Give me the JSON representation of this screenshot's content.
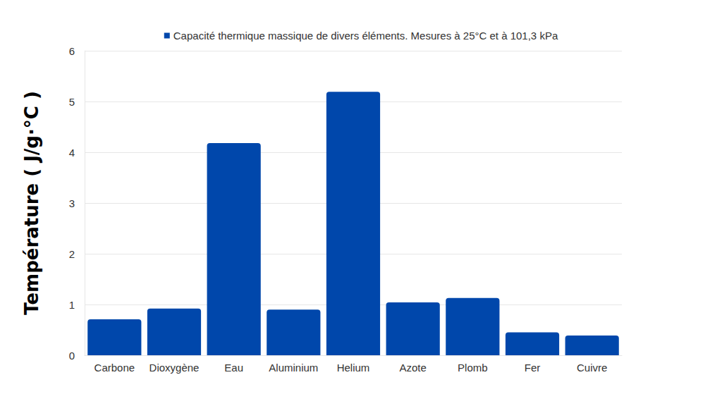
{
  "chart_data": {
    "type": "bar",
    "y_label": "Température ( J/g·°C )",
    "categories": [
      "Carbone",
      "Dioxygène",
      "Eau",
      "Aluminium",
      "Helium",
      "Azote",
      "Plomb",
      "Fer",
      "Cuivre"
    ],
    "series": [
      {
        "name": "Capacité thermique massique de divers éléments. Mesures à 25°C et à 101,3 kPa",
        "color": "#0047ab",
        "values": [
          0.71,
          0.92,
          4.18,
          0.9,
          5.19,
          1.04,
          1.13,
          0.45,
          0.39
        ]
      }
    ],
    "ylim": [
      0,
      6
    ],
    "yticks": [
      0,
      1,
      2,
      3,
      4,
      5,
      6
    ],
    "grid": true,
    "legend": "top"
  }
}
